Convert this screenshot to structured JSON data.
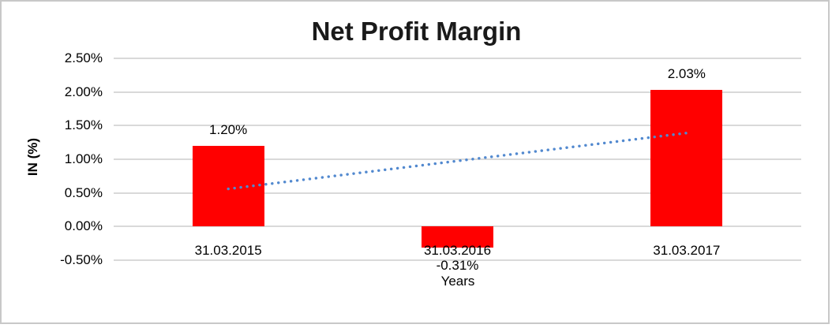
{
  "chart_data": {
    "type": "bar",
    "title": "Net Profit Margin",
    "xlabel": "Years",
    "ylabel": "IN (%)",
    "categories": [
      "31.03.2015",
      "31.03.2016",
      "31.03.2017"
    ],
    "values": [
      1.2,
      -0.31,
      2.03
    ],
    "data_labels": [
      "1.20%",
      "-0.31%",
      "2.03%"
    ],
    "y_axis": {
      "tick_values": [
        2.5,
        2.0,
        1.5,
        1.0,
        0.5,
        0.0,
        -0.5
      ],
      "tick_labels": [
        "2.50%",
        "2.00%",
        "1.50%",
        "1.00%",
        "0.50%",
        "0.00%",
        "-0.50%"
      ],
      "ylim": [
        -0.5,
        2.5
      ]
    },
    "grid": "horizontal",
    "legend": "none",
    "colors": {
      "bar": "#ff0000",
      "gridline": "#d9d9d9",
      "frame_border": "#c8c8c8",
      "trendline": "#5289cf",
      "text": "#000000"
    },
    "trendline": {
      "type": "linear",
      "style": "dotted",
      "start_value": 0.56,
      "end_value": 1.39
    }
  }
}
